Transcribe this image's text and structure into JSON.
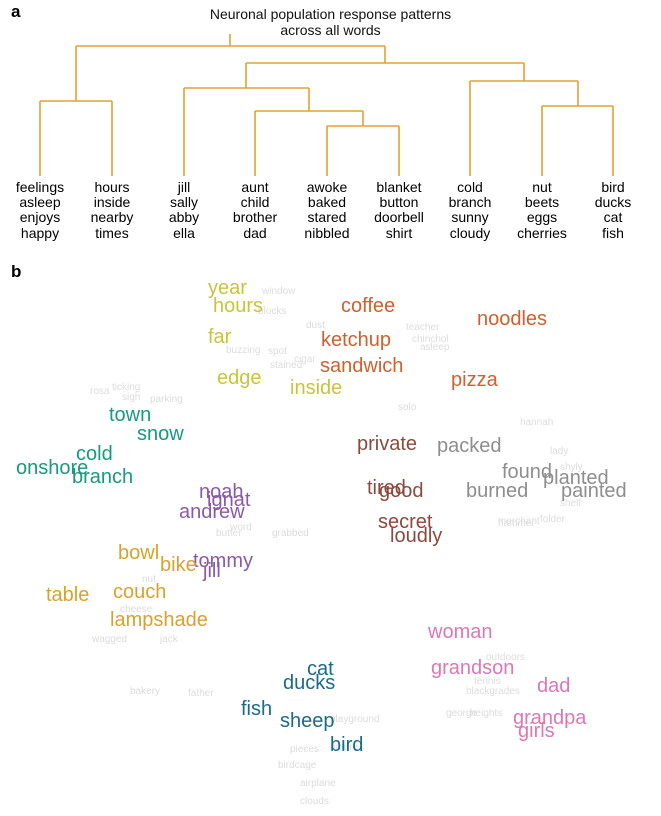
{
  "panel_a": {
    "label": "a",
    "title_line1": "Neuronal population response patterns",
    "title_line2": "across all words",
    "line_color": "#e0a234",
    "leaves": [
      [
        "feelings",
        "asleep",
        "enjoys",
        "happy"
      ],
      [
        "hours",
        "inside",
        "nearby",
        "times"
      ],
      [
        "jill",
        "sally",
        "abby",
        "ella"
      ],
      [
        "aunt",
        "child",
        "brother",
        "dad"
      ],
      [
        "awoke",
        "baked",
        "stared",
        "nibbled"
      ],
      [
        "blanket",
        "button",
        "doorbell",
        "shirt"
      ],
      [
        "cold",
        "branch",
        "sunny",
        "cloudy"
      ],
      [
        "nut",
        "beets",
        "eggs",
        "cherries"
      ],
      [
        "bird",
        "ducks",
        "cat",
        "fish"
      ]
    ]
  },
  "panel_b": {
    "label": "b",
    "colors": {
      "yellow": "#c8c43c",
      "orange": "#d0602e",
      "teal": "#169a80",
      "purple": "#8a5aa8",
      "brown": "#8a4a3c",
      "gray": "#8e8e8e",
      "gold": "#d8a22c",
      "pink": "#dc78b4",
      "blue": "#1a6a8a"
    },
    "words": [
      {
        "text": "year",
        "c": "yellow"
      },
      {
        "text": "hours",
        "c": "yellow"
      },
      {
        "text": "far",
        "c": "yellow"
      },
      {
        "text": "edge",
        "c": "yellow"
      },
      {
        "text": "inside",
        "c": "yellow"
      },
      {
        "text": "coffee",
        "c": "orange"
      },
      {
        "text": "noodles",
        "c": "orange"
      },
      {
        "text": "ketchup",
        "c": "orange"
      },
      {
        "text": "sandwich",
        "c": "orange"
      },
      {
        "text": "pizza",
        "c": "orange"
      },
      {
        "text": "town",
        "c": "teal"
      },
      {
        "text": "snow",
        "c": "teal"
      },
      {
        "text": "cold",
        "c": "teal"
      },
      {
        "text": "onshore",
        "c": "teal"
      },
      {
        "text": "branch",
        "c": "teal"
      },
      {
        "text": "private",
        "c": "brown"
      },
      {
        "text": "tired",
        "c": "brown"
      },
      {
        "text": "good",
        "c": "brown"
      },
      {
        "text": "secret",
        "c": "brown"
      },
      {
        "text": "loudly",
        "c": "brown"
      },
      {
        "text": "packed",
        "c": "gray"
      },
      {
        "text": "found",
        "c": "gray"
      },
      {
        "text": "planted",
        "c": "gray"
      },
      {
        "text": "burned",
        "c": "gray"
      },
      {
        "text": "painted",
        "c": "gray"
      },
      {
        "text": "noah",
        "c": "purple"
      },
      {
        "text": "ignat",
        "c": "purple"
      },
      {
        "text": "andrew",
        "c": "purple"
      },
      {
        "text": "tommy",
        "c": "purple"
      },
      {
        "text": "jill",
        "c": "purple"
      },
      {
        "text": "bowl",
        "c": "gold"
      },
      {
        "text": "bike",
        "c": "gold"
      },
      {
        "text": "table",
        "c": "gold"
      },
      {
        "text": "couch",
        "c": "gold"
      },
      {
        "text": "lampshade",
        "c": "gold"
      },
      {
        "text": "woman",
        "c": "pink"
      },
      {
        "text": "grandson",
        "c": "pink"
      },
      {
        "text": "dad",
        "c": "pink"
      },
      {
        "text": "grandpa",
        "c": "pink"
      },
      {
        "text": "girls",
        "c": "pink"
      },
      {
        "text": "cat",
        "c": "blue"
      },
      {
        "text": "ducks",
        "c": "blue"
      },
      {
        "text": "fish",
        "c": "blue"
      },
      {
        "text": "sheep",
        "c": "blue"
      },
      {
        "text": "bird",
        "c": "blue"
      }
    ],
    "background_words": [
      "window",
      "blocks",
      "buzzing",
      "spot",
      "cigar",
      "teacher",
      "asleep",
      "chinchol",
      "dust",
      "stained",
      "rosa",
      "ticking",
      "parking",
      "sigh",
      "solo",
      "hannah",
      "lady",
      "shyly",
      "outdoors",
      "tennis",
      "blackgrades",
      "george",
      "heights",
      "wagged",
      "jack",
      "nut",
      "cheese",
      "word",
      "butter",
      "merchant",
      "folder",
      "hammer",
      "shelf",
      "playground",
      "pieces",
      "airplane",
      "birdcage",
      "nature",
      "clouds",
      "father",
      "grabbed",
      "bakery"
    ]
  }
}
